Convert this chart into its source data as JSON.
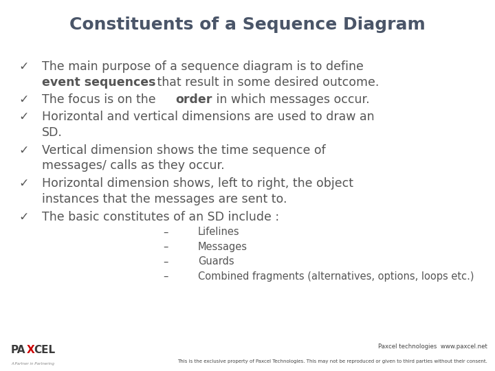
{
  "title": "Constituents of a Sequence Diagram",
  "title_bg": "#dce9f0",
  "body_bg": "#ffffff",
  "footer_bg": "#dce9f0",
  "title_color": "#4a5568",
  "body_color": "#555555",
  "title_fontsize": 18,
  "body_fontsize": 12.5,
  "sub_fontsize": 10.5,
  "bullet_char": "✓",
  "sub_bullets": [
    "Lifelines",
    "Messages",
    "Guards",
    "Combined fragments (alternatives, options, loops etc.)"
  ],
  "footer_line1": "Paxcel technologies  www.paxcel.net",
  "footer_line2": "This is the exclusive property of Paxcel Technologies. This may not be reproduced or given to third parties without their consent."
}
